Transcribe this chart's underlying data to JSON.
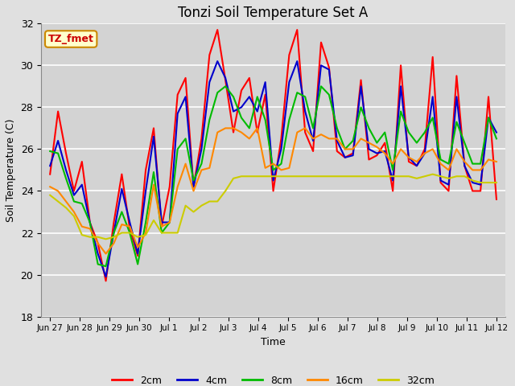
{
  "title": "Tonzi Soil Temperature Set A",
  "xlabel": "Time",
  "ylabel": "Soil Temperature (C)",
  "ylim": [
    18,
    32
  ],
  "fig_bg_color": "#e0e0e0",
  "plot_bg_color": "#d3d3d3",
  "annotation_text": "TZ_fmet",
  "annotation_bg": "#ffffcc",
  "annotation_border": "#cc8800",
  "legend_labels": [
    "2cm",
    "4cm",
    "8cm",
    "16cm",
    "32cm"
  ],
  "legend_colors": [
    "#ff0000",
    "#0000cc",
    "#00bb00",
    "#ff8800",
    "#cccc00"
  ],
  "tick_labels": [
    "Jun 27",
    "Jun 28",
    "Jun 29",
    "Jun 30",
    "Jul 1",
    "Jul 2",
    "Jul 3",
    "Jul 4",
    "Jul 5",
    "Jul 6",
    "Jul 7",
    "Jul 8",
    "Jul 9",
    "Jul 10",
    "Jul 11",
    "Jul 12"
  ],
  "series_2cm": [
    24.8,
    27.8,
    25.8,
    24.0,
    25.4,
    22.5,
    21.5,
    19.7,
    22.5,
    24.8,
    22.2,
    20.9,
    25.0,
    27.0,
    22.3,
    24.2,
    28.6,
    29.4,
    24.2,
    26.5,
    30.5,
    31.7,
    29.3,
    26.8,
    28.8,
    29.4,
    26.8,
    28.6,
    24.0,
    26.5,
    30.5,
    31.7,
    26.8,
    25.9,
    31.1,
    29.9,
    25.9,
    25.6,
    25.8,
    29.3,
    25.5,
    25.7,
    26.3,
    24.0,
    30.0,
    25.4,
    25.2,
    26.0,
    30.4,
    24.4,
    24.0,
    29.5,
    25.2,
    24.0,
    24.0,
    28.5,
    23.6
  ],
  "series_4cm": [
    25.2,
    26.4,
    25.0,
    23.8,
    24.3,
    22.5,
    21.0,
    19.9,
    22.0,
    24.1,
    22.5,
    21.0,
    24.0,
    26.6,
    22.5,
    22.5,
    27.7,
    28.5,
    24.2,
    26.0,
    29.2,
    30.2,
    29.4,
    27.8,
    28.0,
    28.5,
    27.8,
    29.2,
    24.5,
    26.0,
    29.2,
    30.2,
    27.8,
    26.4,
    30.0,
    29.8,
    26.4,
    25.6,
    25.7,
    29.0,
    26.0,
    25.8,
    25.9,
    24.5,
    29.0,
    25.6,
    25.2,
    25.8,
    28.5,
    24.5,
    24.3,
    28.5,
    25.2,
    24.4,
    24.3,
    27.5,
    26.8
  ],
  "series_8cm": [
    25.9,
    25.8,
    24.6,
    23.5,
    23.4,
    22.5,
    20.5,
    20.4,
    22.0,
    23.0,
    22.0,
    20.5,
    22.5,
    24.9,
    22.0,
    22.5,
    26.0,
    26.5,
    24.5,
    25.3,
    27.4,
    28.7,
    29.0,
    28.5,
    27.5,
    27.0,
    28.5,
    27.4,
    25.0,
    25.3,
    27.4,
    28.7,
    28.5,
    27.0,
    29.0,
    28.6,
    27.0,
    26.0,
    26.4,
    28.0,
    27.0,
    26.3,
    26.8,
    25.0,
    27.8,
    26.8,
    26.3,
    26.8,
    27.5,
    25.5,
    25.3,
    27.3,
    26.3,
    25.3,
    25.3,
    27.5,
    26.5
  ],
  "series_16cm": [
    24.2,
    24.0,
    23.5,
    23.0,
    22.3,
    22.2,
    21.5,
    21.0,
    21.5,
    22.4,
    22.3,
    21.3,
    22.0,
    24.3,
    22.3,
    22.5,
    24.2,
    25.3,
    24.0,
    25.0,
    25.1,
    26.8,
    27.0,
    27.0,
    26.8,
    26.5,
    27.0,
    25.1,
    25.3,
    25.0,
    25.1,
    26.8,
    27.0,
    26.5,
    26.7,
    26.5,
    26.5,
    26.0,
    26.0,
    26.5,
    26.3,
    26.1,
    25.8,
    25.3,
    26.0,
    25.6,
    25.4,
    25.8,
    26.0,
    25.3,
    25.0,
    26.0,
    25.4,
    25.0,
    25.0,
    25.5,
    25.4
  ],
  "series_32cm": [
    23.8,
    23.5,
    23.2,
    22.8,
    21.9,
    21.8,
    21.8,
    21.7,
    21.8,
    22.0,
    22.0,
    21.8,
    21.9,
    22.6,
    22.0,
    22.0,
    22.0,
    23.3,
    23.0,
    23.3,
    23.5,
    23.5,
    24.0,
    24.6,
    24.7,
    24.7,
    24.7,
    24.7,
    24.7,
    24.7,
    24.7,
    24.7,
    24.7,
    24.7,
    24.7,
    24.7,
    24.7,
    24.7,
    24.7,
    24.7,
    24.7,
    24.7,
    24.7,
    24.7,
    24.7,
    24.7,
    24.6,
    24.7,
    24.8,
    24.7,
    24.6,
    24.7,
    24.7,
    24.5,
    24.4,
    24.4,
    24.4
  ]
}
